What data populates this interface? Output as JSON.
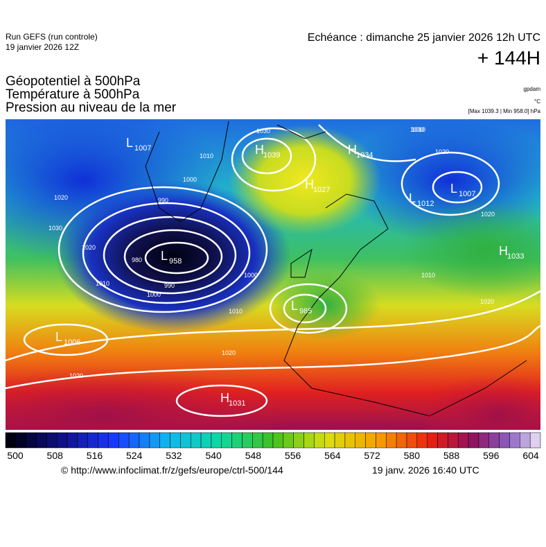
{
  "header": {
    "run": "Run GEFS (run controle)",
    "run_date": "19 janvier 2026 12Z",
    "valid": "Echéance : dimanche 25 janvier 2026 12h UTC",
    "lead": "+ 144H"
  },
  "fields": [
    "Géopotentiel à 500hPa",
    "Température à 500hPa",
    "Pression au niveau de la mer"
  ],
  "units": {
    "geopotential": "gpdam",
    "temperature": "°C",
    "pressure": "[Max 1039.3 | Min 958.0] hPa"
  },
  "centers": [
    {
      "kind": "L",
      "value": "1007"
    },
    {
      "kind": "H",
      "value": "1039"
    },
    {
      "kind": "H",
      "value": "1034"
    },
    {
      "kind": "H",
      "value": "1027"
    },
    {
      "kind": "L",
      "value": "1007"
    },
    {
      "kind": "L",
      "value": "1012"
    },
    {
      "kind": "L",
      "value": "958"
    },
    {
      "kind": "H",
      "value": "1033"
    },
    {
      "kind": "L",
      "value": "985"
    },
    {
      "kind": "L",
      "value": "1006"
    },
    {
      "kind": "H",
      "value": "1031"
    }
  ],
  "isobar_labels": [
    "1030",
    "1020",
    "1010",
    "1000",
    "990",
    "980",
    "1020",
    "1030",
    "1020",
    "1010",
    "990",
    "1000",
    "1000",
    "1010",
    "1020",
    "1020",
    "1010",
    "1020",
    "1030",
    "1020",
    "1010"
  ],
  "colorbar_ticks": [
    500,
    508,
    516,
    524,
    532,
    540,
    548,
    556,
    564,
    572,
    580,
    588,
    596,
    604
  ],
  "footer": {
    "source": "© http://www.infoclimat.fr/z/gefs/europe/ctrl-500/144",
    "generated": "19 janv. 2026 16:40 UTC"
  }
}
